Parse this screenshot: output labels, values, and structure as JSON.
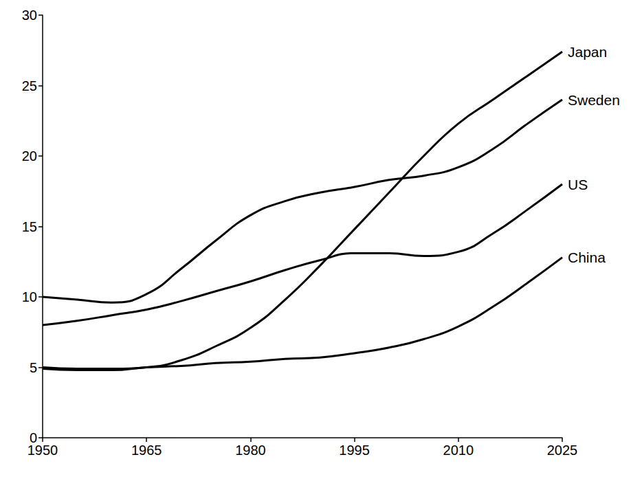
{
  "chart_data": {
    "type": "line",
    "x": [
      1950,
      1955,
      1960,
      1965,
      1970,
      1975,
      1980,
      1985,
      1990,
      1995,
      2000,
      2005,
      2010,
      2015,
      2020,
      2025
    ],
    "series": [
      {
        "name": "Japan",
        "color": "#000000",
        "values": [
          5,
          4.9,
          4.9,
          5,
          5.5,
          6.5,
          7.8,
          9.8,
          12.2,
          14.8,
          17.4,
          20,
          22.3,
          24,
          25.7,
          27.4
        ]
      },
      {
        "name": "Sweden",
        "color": "#000000",
        "values": [
          10,
          9.8,
          9.6,
          10.2,
          12,
          14,
          15.8,
          16.8,
          17.4,
          17.8,
          18.3,
          18.6,
          19.2,
          20.5,
          22.3,
          24
        ]
      },
      {
        "name": "US",
        "color": "#000000",
        "values": [
          8,
          8.3,
          8.7,
          9.1,
          9.7,
          10.4,
          11.1,
          11.9,
          12.6,
          13.1,
          13.1,
          12.9,
          13.2,
          14.5,
          16.2,
          18
        ]
      },
      {
        "name": "China",
        "color": "#000000",
        "values": [
          4.9,
          4.8,
          4.8,
          5,
          5.1,
          5.3,
          5.4,
          5.6,
          5.7,
          6,
          6.4,
          7,
          7.9,
          9.3,
          11,
          12.8
        ]
      }
    ],
    "xlim": [
      1950,
      2025
    ],
    "xticks": [
      1950,
      1965,
      1980,
      1995,
      2010,
      2025
    ],
    "ylim": [
      0,
      30
    ],
    "yticks": [
      0,
      5,
      10,
      15,
      20,
      25,
      30
    ],
    "grid": false,
    "line_style": "solid"
  }
}
